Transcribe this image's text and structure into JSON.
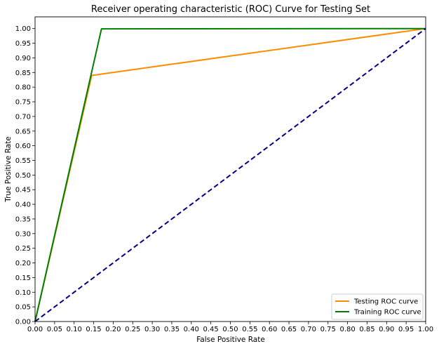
{
  "chart_data": {
    "type": "line",
    "title": "Receiver operating characteristic (ROC) Curve for Testing Set",
    "xlabel": "False Positive Rate",
    "ylabel": "True Positive Rate",
    "xlim": [
      0.0,
      1.0
    ],
    "ylim": [
      0.0,
      1.04
    ],
    "x_ticks": [
      "0.00",
      "0.05",
      "0.10",
      "0.15",
      "0.20",
      "0.25",
      "0.30",
      "0.35",
      "0.40",
      "0.45",
      "0.50",
      "0.55",
      "0.60",
      "0.65",
      "0.70",
      "0.75",
      "0.80",
      "0.85",
      "0.90",
      "0.95",
      "1.00"
    ],
    "y_ticks": [
      "0.00",
      "0.05",
      "0.10",
      "0.15",
      "0.20",
      "0.25",
      "0.30",
      "0.35",
      "0.40",
      "0.45",
      "0.50",
      "0.55",
      "0.60",
      "0.65",
      "0.70",
      "0.75",
      "0.80",
      "0.85",
      "0.90",
      "0.95",
      "1.00"
    ],
    "grid": false,
    "legend_position": "bottom-right",
    "series": [
      {
        "name": "Testing ROC curve",
        "color": "#ff8c00",
        "style": "solid",
        "x": [
          0.0,
          0.145,
          1.0
        ],
        "y": [
          0.0,
          0.84,
          1.0
        ]
      },
      {
        "name": "Training ROC curve",
        "color": "#008000",
        "style": "solid",
        "x": [
          0.0,
          0.17,
          1.0
        ],
        "y": [
          0.0,
          0.999,
          1.0
        ]
      },
      {
        "color": "#000080",
        "style": "dashed",
        "x": [
          0.0,
          1.0
        ],
        "y": [
          0.0,
          1.0
        ]
      }
    ]
  }
}
